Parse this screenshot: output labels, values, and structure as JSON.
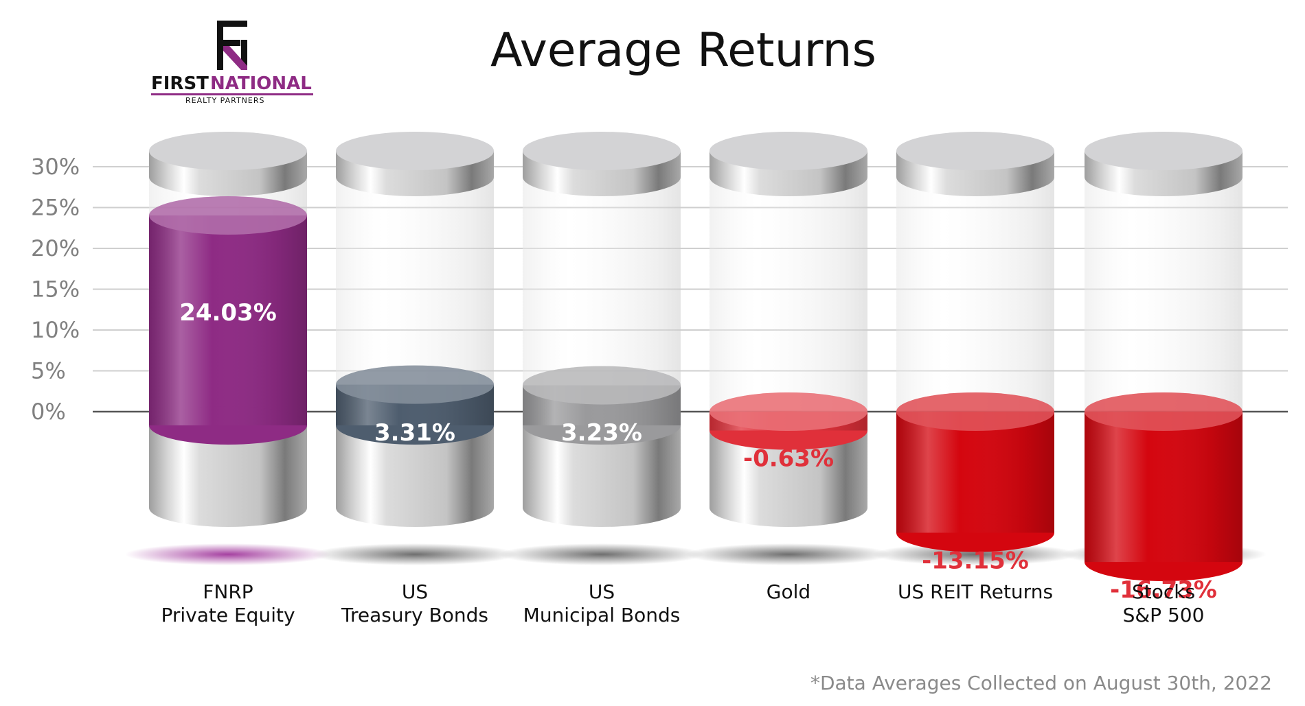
{
  "logo": {
    "word1": "FIRST",
    "word2": "NATIONAL",
    "subtitle": "REALTY PARTNERS",
    "dark_color": "#111111",
    "accent_color": "#8e2b84"
  },
  "chart_data": {
    "type": "bar",
    "title": "Average Returns",
    "xlabel": "",
    "ylabel": "",
    "ylim": [
      -20,
      30
    ],
    "yticks": [
      0,
      5,
      10,
      15,
      20,
      25,
      30
    ],
    "ytick_labels": [
      "0%",
      "5%",
      "10%",
      "15%",
      "20%",
      "25%",
      "30%"
    ],
    "grid": true,
    "categories": [
      [
        "FNRP",
        "Private Equity"
      ],
      [
        "US",
        "Treasury Bonds"
      ],
      [
        "US",
        "Municipal Bonds"
      ],
      [
        "Gold"
      ],
      [
        "US REIT Returns"
      ],
      [
        "Stocks",
        "S&P 500"
      ]
    ],
    "values": [
      24.03,
      3.31,
      3.23,
      -0.63,
      -13.15,
      -16.73
    ],
    "value_labels": [
      "24.03%",
      "3.31%",
      "3.23%",
      "-0.63%",
      "-13.15%",
      "-16.73%"
    ],
    "colors": [
      "#8e2b84",
      "#4e5d6e",
      "#9a9a9c",
      "#e0303a",
      "#d4060f",
      "#d4060f"
    ],
    "label_colors": [
      "#ffffff",
      "#ffffff",
      "#ffffff",
      "#e0303a",
      "#e0303a",
      "#e0303a"
    ],
    "footnote": "*Data Averages Collected on August 30th, 2022"
  }
}
